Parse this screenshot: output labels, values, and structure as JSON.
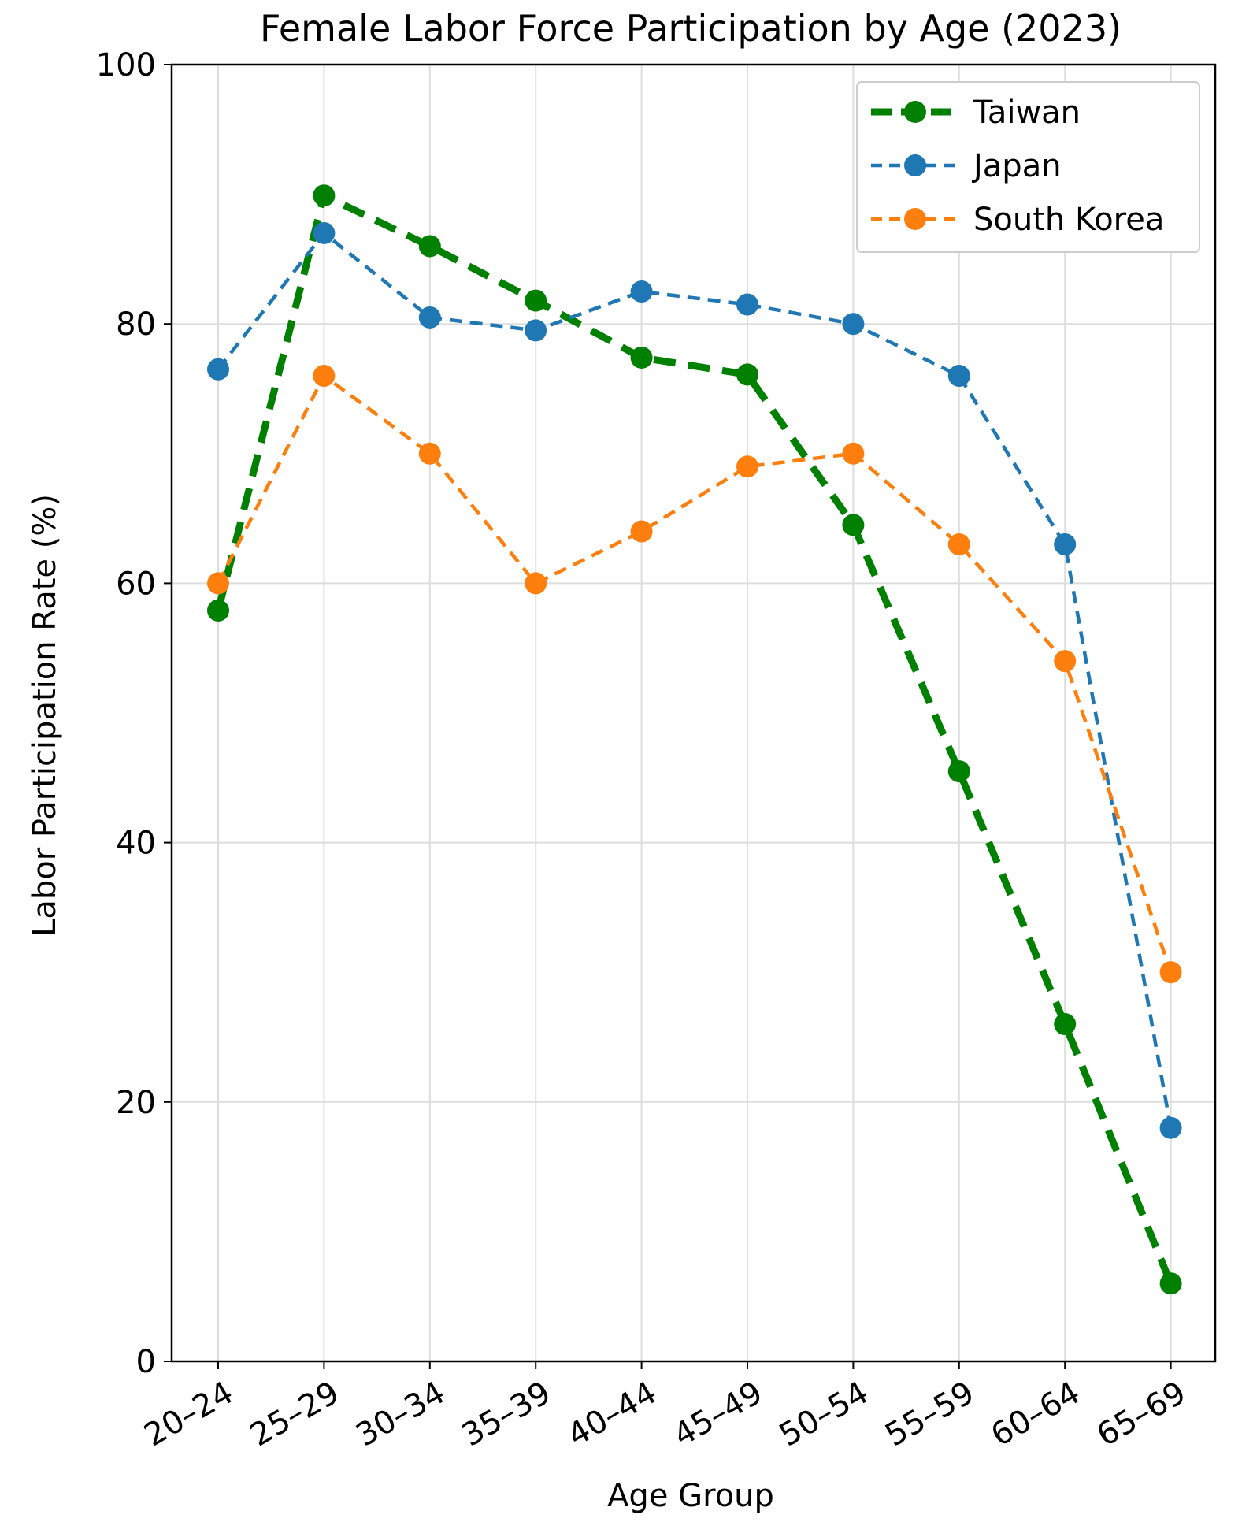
{
  "chart_data": {
    "type": "line",
    "title": "Female Labor Force Participation by Age (2023)",
    "xlabel": "Age Group",
    "ylabel": "Labor Participation Rate (%)",
    "categories": [
      "20–24",
      "25–29",
      "30–34",
      "35–39",
      "40–44",
      "45–49",
      "50–54",
      "55–59",
      "60–64",
      "65–69"
    ],
    "ylim": [
      0,
      100
    ],
    "yticks": [
      0,
      20,
      40,
      60,
      80,
      100
    ],
    "grid": true,
    "legend_position": "top-right",
    "series": [
      {
        "name": "Taiwan",
        "color": "#008000",
        "style": "dashed-thick",
        "values": [
          57.9,
          89.9,
          86.0,
          81.8,
          77.4,
          76.1,
          64.5,
          45.5,
          26.0,
          6.0
        ]
      },
      {
        "name": "Japan",
        "color": "#1f77b4",
        "style": "dashed",
        "values": [
          76.5,
          87.0,
          80.5,
          79.5,
          82.5,
          81.5,
          80.0,
          76.0,
          63.0,
          18.0
        ]
      },
      {
        "name": "South Korea",
        "color": "#ff7f0e",
        "style": "dashed",
        "values": [
          60.0,
          76.0,
          70.0,
          60.0,
          64.0,
          69.0,
          70.0,
          63.0,
          54.0,
          30.0
        ]
      }
    ]
  }
}
